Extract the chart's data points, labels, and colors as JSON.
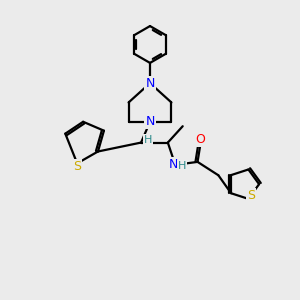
{
  "bg_color": "#ebebeb",
  "atom_colors": {
    "N": "#0000ff",
    "O": "#ff0000",
    "S": "#ccaa00",
    "C": "#000000",
    "H": "#2e8b8b"
  },
  "line_color": "#000000",
  "line_width": 1.6,
  "font_size": 9,
  "fig_size": [
    3.0,
    3.0
  ],
  "dpi": 100
}
